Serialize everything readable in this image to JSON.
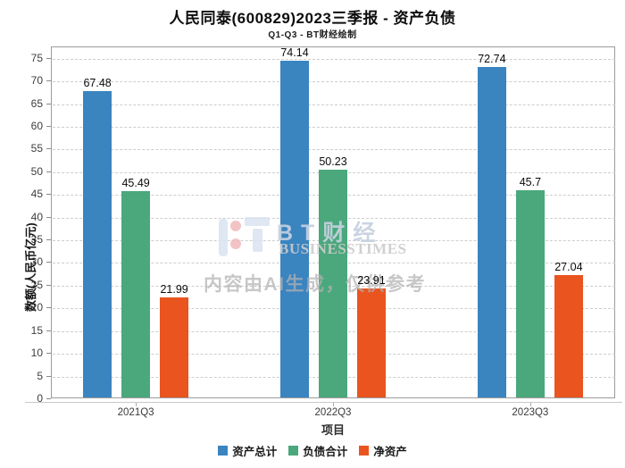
{
  "title": "人民同泰(600829)2023三季报 - 资产负债",
  "subtitle": "Q1-Q3 - BT财经绘制",
  "watermark": {
    "brand_cn": "BT财经",
    "brand_en": "BUSINESSTIMES",
    "ai_notice": "内容由AI生成，仅供参考"
  },
  "chart_data": {
    "type": "bar",
    "title": "人民同泰(600829)2023三季报 - 资产负债",
    "subtitle": "Q1-Q3 - BT财经绘制",
    "categories": [
      "2021Q3",
      "2022Q3",
      "2023Q3"
    ],
    "series": [
      {
        "name": "资产总计",
        "color": "#3a84c0",
        "values": [
          67.48,
          74.14,
          72.74
        ]
      },
      {
        "name": "负债合计",
        "color": "#4aa87c",
        "values": [
          45.49,
          50.23,
          45.7
        ]
      },
      {
        "name": "净资产",
        "color": "#e9541f",
        "values": [
          21.99,
          23.91,
          27.04
        ]
      }
    ],
    "xlabel": "项目",
    "ylabel": "数额(人民币亿元)",
    "ylim": [
      0,
      77.5
    ],
    "yticks": [
      0,
      5,
      10,
      15,
      20,
      25,
      30,
      35,
      40,
      45,
      50,
      55,
      60,
      65,
      70,
      75
    ],
    "grid": true,
    "legend_position": "bottom"
  }
}
